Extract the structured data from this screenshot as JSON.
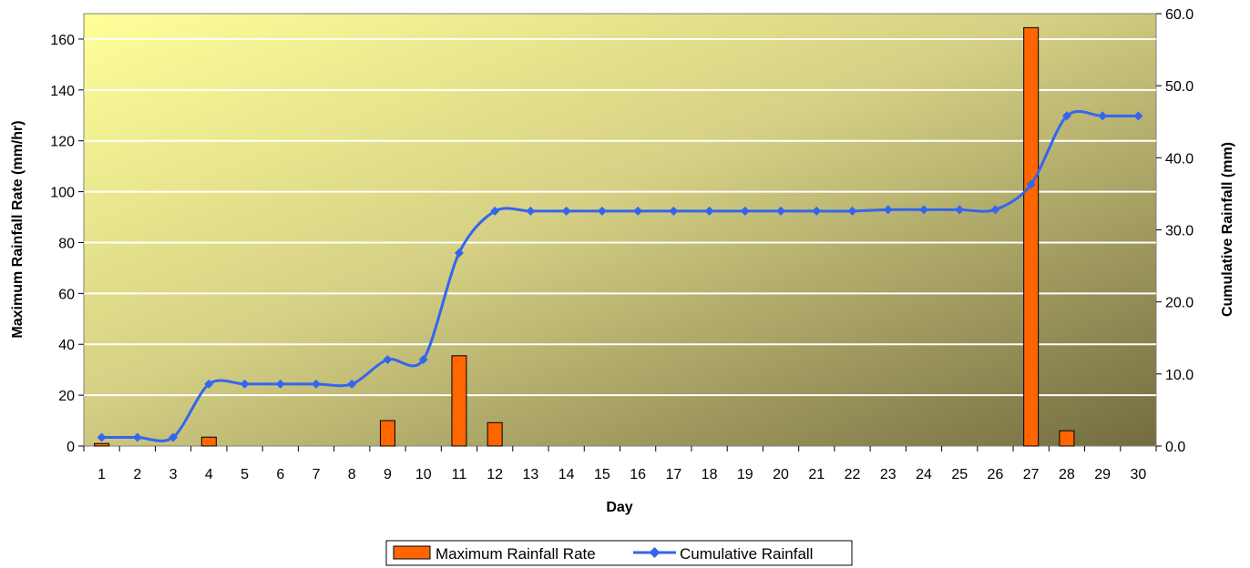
{
  "chart_data": {
    "type": "bar",
    "xlabel": "Day",
    "ylabel_left": "Maximum Rainfall Rate (mm/hr)",
    "ylabel_right": "Cumulative Rainfall (mm)",
    "ylim_left": [
      0,
      170
    ],
    "ylim_right": [
      0,
      60
    ],
    "yticks_left": [
      "0",
      "20",
      "40",
      "60",
      "80",
      "100",
      "120",
      "140",
      "160"
    ],
    "yticks_right": [
      "0.0",
      "10.0",
      "20.0",
      "30.0",
      "40.0",
      "50.0",
      "60.0"
    ],
    "categories": [
      "1",
      "2",
      "3",
      "4",
      "5",
      "6",
      "7",
      "8",
      "9",
      "10",
      "11",
      "12",
      "13",
      "14",
      "15",
      "16",
      "17",
      "18",
      "19",
      "20",
      "21",
      "22",
      "23",
      "24",
      "25",
      "26",
      "27",
      "28",
      "29",
      "30"
    ],
    "grid": true,
    "legend_position": "bottom",
    "series": [
      {
        "name": "Maximum Rainfall Rate",
        "type": "bar",
        "axis": "left",
        "color": "#ff6600",
        "values": [
          1,
          0,
          0,
          3.5,
          0,
          0,
          0,
          0,
          10,
          0,
          35.5,
          9.2,
          0,
          0,
          0,
          0,
          0,
          0,
          0,
          0,
          0,
          0,
          0,
          0,
          0,
          0,
          164.5,
          6,
          0,
          0
        ]
      },
      {
        "name": "Cumulative Rainfall",
        "type": "line",
        "axis": "right",
        "color": "#3366ee",
        "values": [
          1.2,
          1.2,
          1.2,
          8.6,
          8.6,
          8.6,
          8.6,
          8.6,
          12.0,
          12.0,
          26.8,
          32.6,
          32.6,
          32.6,
          32.6,
          32.6,
          32.6,
          32.6,
          32.6,
          32.6,
          32.6,
          32.6,
          32.8,
          32.8,
          32.8,
          32.8,
          36.3,
          45.8,
          45.8,
          45.8
        ]
      }
    ]
  }
}
